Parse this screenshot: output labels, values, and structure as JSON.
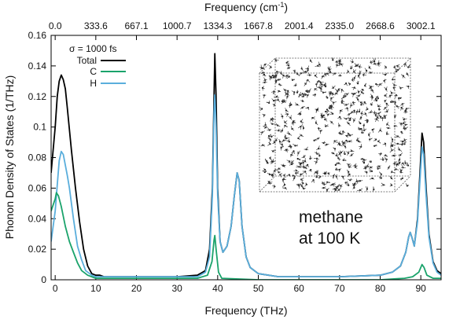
{
  "chart_data": {
    "type": "line",
    "xlabel": "Frequency (THz)",
    "x2label": "Frequency (cm",
    "x2label_sup": "-1",
    "x2label_close": ")",
    "ylabel": "Phonon Density of States (1/THz)",
    "xlim": [
      -1,
      95
    ],
    "ylim": [
      0,
      0.16
    ],
    "xticks": [
      0,
      10,
      20,
      30,
      40,
      50,
      60,
      70,
      80,
      90
    ],
    "yticks": [
      0,
      0.02,
      0.04,
      0.06,
      0.08,
      0.1,
      0.12,
      0.14,
      0.16
    ],
    "x2ticks": [
      {
        "thz": 0,
        "label": "0.0"
      },
      {
        "thz": 10,
        "label": "333.6"
      },
      {
        "thz": 20,
        "label": "667.1"
      },
      {
        "thz": 30,
        "label": "1000.7"
      },
      {
        "thz": 40,
        "label": "1334.3"
      },
      {
        "thz": 50,
        "label": "1667.8"
      },
      {
        "thz": 60,
        "label": "2001.4"
      },
      {
        "thz": 70,
        "label": "2335.0"
      },
      {
        "thz": 80,
        "label": "2668.6"
      },
      {
        "thz": 90,
        "label": "3002.1"
      }
    ],
    "legend_title": "σ = 1000 fs",
    "legend_position": "top-left",
    "annotation": [
      "methane",
      "at 100 K"
    ],
    "series": [
      {
        "name": "Total",
        "color": "#000000",
        "points": [
          [
            -1,
            0.07
          ],
          [
            0,
            0.1
          ],
          [
            0.5,
            0.12
          ],
          [
            1,
            0.13
          ],
          [
            1.5,
            0.134
          ],
          [
            2,
            0.131
          ],
          [
            2.5,
            0.125
          ],
          [
            3,
            0.112
          ],
          [
            4,
            0.085
          ],
          [
            5,
            0.06
          ],
          [
            6,
            0.038
          ],
          [
            7,
            0.02
          ],
          [
            8,
            0.009
          ],
          [
            9,
            0.004
          ],
          [
            10,
            0.003
          ],
          [
            11,
            0.003
          ],
          [
            12,
            0.002
          ],
          [
            14,
            0.002
          ],
          [
            20,
            0.002
          ],
          [
            30,
            0.002
          ],
          [
            35,
            0.003
          ],
          [
            37,
            0.006
          ],
          [
            38,
            0.02
          ],
          [
            38.7,
            0.06
          ],
          [
            39.1,
            0.12
          ],
          [
            39.3,
            0.148
          ],
          [
            39.6,
            0.12
          ],
          [
            40,
            0.06
          ],
          [
            40.6,
            0.025
          ],
          [
            41.3,
            0.018
          ],
          [
            42.3,
            0.022
          ],
          [
            43.3,
            0.035
          ],
          [
            44.1,
            0.055
          ],
          [
            44.8,
            0.07
          ],
          [
            45.3,
            0.065
          ],
          [
            46,
            0.035
          ],
          [
            47,
            0.015
          ],
          [
            48,
            0.008
          ],
          [
            50,
            0.004
          ],
          [
            55,
            0.002
          ],
          [
            70,
            0.002
          ],
          [
            80,
            0.003
          ],
          [
            83,
            0.005
          ],
          [
            85,
            0.009
          ],
          [
            86.3,
            0.018
          ],
          [
            87,
            0.028
          ],
          [
            87.4,
            0.031
          ],
          [
            87.9,
            0.027
          ],
          [
            88.4,
            0.022
          ],
          [
            89.2,
            0.04
          ],
          [
            89.8,
            0.07
          ],
          [
            90.3,
            0.096
          ],
          [
            90.7,
            0.09
          ],
          [
            91.3,
            0.06
          ],
          [
            92,
            0.03
          ],
          [
            93,
            0.012
          ],
          [
            94,
            0.006
          ],
          [
            95,
            0.004
          ]
        ]
      },
      {
        "name": "C",
        "color": "#1aa36b",
        "points": [
          [
            -1,
            0.045
          ],
          [
            0,
            0.053
          ],
          [
            0.3,
            0.057
          ],
          [
            0.8,
            0.055
          ],
          [
            1.5,
            0.048
          ],
          [
            2.5,
            0.035
          ],
          [
            3.5,
            0.025
          ],
          [
            4.5,
            0.018
          ],
          [
            5.5,
            0.011
          ],
          [
            6.5,
            0.006
          ],
          [
            8,
            0.003
          ],
          [
            10,
            0.001
          ],
          [
            20,
            0.001
          ],
          [
            35,
            0.001
          ],
          [
            37.5,
            0.003
          ],
          [
            38.6,
            0.012
          ],
          [
            39.1,
            0.026
          ],
          [
            39.3,
            0.029
          ],
          [
            39.6,
            0.02
          ],
          [
            40.2,
            0.005
          ],
          [
            41,
            0.001
          ],
          [
            50,
            0
          ],
          [
            80,
            0
          ],
          [
            86,
            0.001
          ],
          [
            88,
            0.002
          ],
          [
            89.5,
            0.005
          ],
          [
            90.3,
            0.01
          ],
          [
            90.8,
            0.008
          ],
          [
            91.5,
            0.003
          ],
          [
            93,
            0.001
          ],
          [
            95,
            0.001
          ]
        ]
      },
      {
        "name": "H",
        "color": "#5aaedc",
        "points": [
          [
            -1,
            0.025
          ],
          [
            0,
            0.045
          ],
          [
            0.5,
            0.062
          ],
          [
            1,
            0.078
          ],
          [
            1.5,
            0.084
          ],
          [
            2,
            0.082
          ],
          [
            2.5,
            0.075
          ],
          [
            3,
            0.068
          ],
          [
            3.5,
            0.06
          ],
          [
            4.5,
            0.04
          ],
          [
            5.5,
            0.022
          ],
          [
            6.5,
            0.013
          ],
          [
            7.5,
            0.006
          ],
          [
            9,
            0.003
          ],
          [
            10,
            0.002
          ],
          [
            20,
            0.002
          ],
          [
            35,
            0.002
          ],
          [
            37,
            0.005
          ],
          [
            38,
            0.015
          ],
          [
            38.7,
            0.055
          ],
          [
            39.1,
            0.11
          ],
          [
            39.3,
            0.121
          ],
          [
            39.6,
            0.1
          ],
          [
            40,
            0.055
          ],
          [
            40.6,
            0.025
          ],
          [
            41.3,
            0.018
          ],
          [
            42.3,
            0.022
          ],
          [
            43.3,
            0.035
          ],
          [
            44.1,
            0.055
          ],
          [
            44.8,
            0.07
          ],
          [
            45.3,
            0.065
          ],
          [
            46,
            0.035
          ],
          [
            47,
            0.015
          ],
          [
            48,
            0.008
          ],
          [
            50,
            0.004
          ],
          [
            55,
            0.002
          ],
          [
            70,
            0.002
          ],
          [
            80,
            0.003
          ],
          [
            83,
            0.005
          ],
          [
            85,
            0.009
          ],
          [
            86.3,
            0.018
          ],
          [
            87,
            0.028
          ],
          [
            87.4,
            0.031
          ],
          [
            87.9,
            0.027
          ],
          [
            88.4,
            0.022
          ],
          [
            89.2,
            0.038
          ],
          [
            89.8,
            0.065
          ],
          [
            90.3,
            0.087
          ],
          [
            90.7,
            0.082
          ],
          [
            91.3,
            0.055
          ],
          [
            92,
            0.028
          ],
          [
            93,
            0.011
          ],
          [
            94,
            0.005
          ],
          [
            95,
            0.003
          ]
        ]
      }
    ]
  }
}
